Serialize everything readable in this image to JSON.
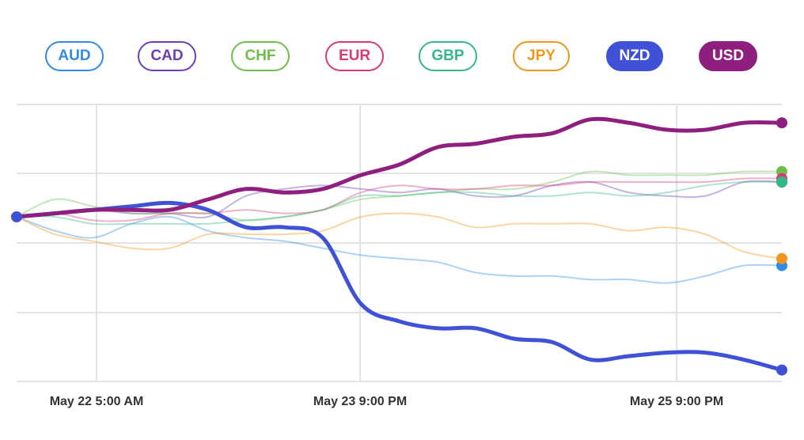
{
  "chart_data": {
    "type": "line",
    "x_ticks": [
      "May 22 5:00 AM",
      "May 23 9:00 PM",
      "May 25 9:00 PM"
    ],
    "grid": true,
    "legend_placement": "top",
    "x": [
      0,
      0.05,
      0.1,
      0.15,
      0.2,
      0.25,
      0.3,
      0.35,
      0.4,
      0.45,
      0.5,
      0.55,
      0.6,
      0.65,
      0.7,
      0.75,
      0.8,
      0.85,
      0.9,
      0.95,
      1
    ],
    "series": [
      {
        "name": "AUD",
        "color": "#2f8be6",
        "highlight": false,
        "values": [
          0,
          -0.2,
          -0.3,
          -0.1,
          0,
          -0.2,
          -0.3,
          -0.35,
          -0.45,
          -0.55,
          -0.6,
          -0.65,
          -0.8,
          -0.85,
          -0.85,
          -0.9,
          -0.9,
          -0.95,
          -0.85,
          -0.7,
          -0.7
        ]
      },
      {
        "name": "CAD",
        "color": "#6b3fb5",
        "highlight": false,
        "values": [
          0,
          0.05,
          0.1,
          0.05,
          0.05,
          0,
          0.3,
          0.4,
          0.45,
          0.4,
          0.35,
          0.4,
          0.3,
          0.3,
          0.45,
          0.5,
          0.35,
          0.3,
          0.3,
          0.5,
          0.5
        ]
      },
      {
        "name": "CHF",
        "color": "#6cc04a",
        "highlight": false,
        "values": [
          0,
          0.25,
          0.15,
          0.05,
          0.05,
          0.05,
          -0.05,
          0,
          0.1,
          0.25,
          0.3,
          0.35,
          0.4,
          0.4,
          0.5,
          0.65,
          0.6,
          0.6,
          0.6,
          0.65,
          0.65
        ]
      },
      {
        "name": "EUR",
        "color": "#d63b77",
        "highlight": false,
        "values": [
          0,
          0.05,
          -0.05,
          -0.05,
          0.05,
          0.05,
          0.1,
          0.05,
          0.1,
          0.35,
          0.45,
          0.4,
          0.4,
          0.45,
          0.45,
          0.5,
          0.5,
          0.5,
          0.5,
          0.55,
          0.55
        ]
      },
      {
        "name": "GBP",
        "color": "#34b88a",
        "highlight": false,
        "values": [
          0,
          0,
          -0.1,
          -0.1,
          -0.1,
          -0.1,
          -0.05,
          0,
          0.1,
          0.3,
          0.3,
          0.35,
          0.35,
          0.3,
          0.3,
          0.35,
          0.3,
          0.35,
          0.45,
          0.5,
          0.5
        ]
      },
      {
        "name": "JPY",
        "color": "#f2961b",
        "highlight": false,
        "values": [
          0,
          -0.25,
          -0.35,
          -0.45,
          -0.45,
          -0.25,
          -0.25,
          -0.25,
          -0.2,
          0,
          0.05,
          0,
          -0.15,
          -0.1,
          -0.1,
          -0.1,
          -0.2,
          -0.15,
          -0.25,
          -0.5,
          -0.6
        ]
      },
      {
        "name": "NZD",
        "color": "#3f51d6",
        "highlight": true,
        "values": [
          0,
          0.05,
          0.1,
          0.15,
          0.2,
          0.1,
          -0.15,
          -0.15,
          -0.3,
          -1.25,
          -1.5,
          -1.6,
          -1.6,
          -1.75,
          -1.8,
          -2.05,
          -2.0,
          -1.95,
          -1.95,
          -2.05,
          -2.2
        ]
      },
      {
        "name": "USD",
        "color": "#8f1f7f",
        "highlight": true,
        "values": [
          0,
          0.05,
          0.1,
          0.1,
          0.1,
          0.25,
          0.4,
          0.35,
          0.4,
          0.6,
          0.75,
          1.0,
          1.05,
          1.15,
          1.2,
          1.4,
          1.35,
          1.25,
          1.25,
          1.35,
          1.35
        ]
      }
    ]
  }
}
